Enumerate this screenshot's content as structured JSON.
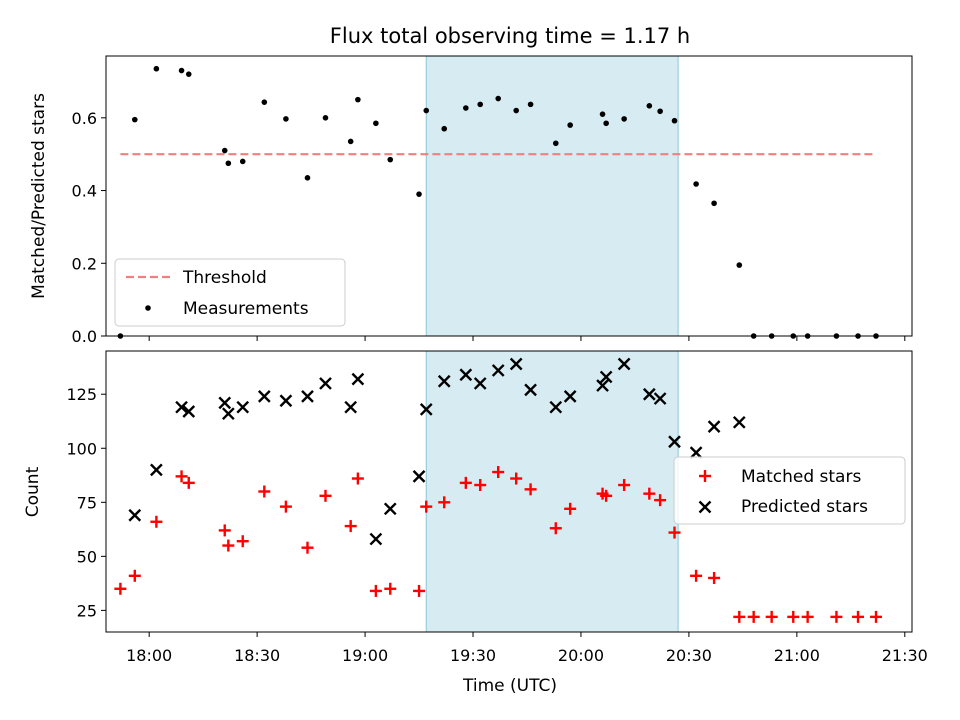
{
  "chart_data": {
    "title": "Flux total observing time = 1.17 h",
    "type": "scatter",
    "x_label": "Time (UTC)",
    "x_ticks": [
      "18:00",
      "18:30",
      "19:00",
      "19:30",
      "20:00",
      "20:30",
      "21:00",
      "21:30"
    ],
    "x_range": [
      "17:48",
      "21:32"
    ],
    "highlight_span": {
      "start": "19:17",
      "end": "20:27",
      "color": "#add8e6"
    },
    "top_panel": {
      "y_label": "Matched/Predicted stars",
      "y_range": [
        0,
        0.77
      ],
      "y_ticks": [
        "0.0",
        "0.2",
        "0.4",
        "0.6"
      ],
      "legend": {
        "location": "lower left",
        "entries": [
          "Threshold",
          "Measurements"
        ]
      },
      "threshold": {
        "name": "Threshold",
        "value": 0.5,
        "x_start": "17:52",
        "x_end": "21:22",
        "color": "#f08080",
        "style": "dashed"
      },
      "measurements": {
        "name": "Measurements",
        "color": "#000000",
        "points": [
          [
            "17:52",
            0.0
          ],
          [
            "17:56",
            0.595
          ],
          [
            "18:02",
            0.735
          ],
          [
            "18:09",
            0.73
          ],
          [
            "18:11",
            0.72
          ],
          [
            "18:21",
            0.51
          ],
          [
            "18:22",
            0.475
          ],
          [
            "18:26",
            0.48
          ],
          [
            "18:32",
            0.643
          ],
          [
            "18:38",
            0.597
          ],
          [
            "18:44",
            0.435
          ],
          [
            "18:49",
            0.6
          ],
          [
            "18:56",
            0.535
          ],
          [
            "18:58",
            0.65
          ],
          [
            "19:03",
            0.585
          ],
          [
            "19:07",
            0.485
          ],
          [
            "19:15",
            0.39
          ],
          [
            "19:17",
            0.62
          ],
          [
            "19:22",
            0.57
          ],
          [
            "19:28",
            0.627
          ],
          [
            "19:32",
            0.637
          ],
          [
            "19:37",
            0.653
          ],
          [
            "19:42",
            0.62
          ],
          [
            "19:46",
            0.637
          ],
          [
            "19:53",
            0.53
          ],
          [
            "19:57",
            0.58
          ],
          [
            "20:06",
            0.61
          ],
          [
            "20:07",
            0.585
          ],
          [
            "20:12",
            0.597
          ],
          [
            "20:19",
            0.633
          ],
          [
            "20:22",
            0.618
          ],
          [
            "20:26",
            0.592
          ],
          [
            "20:32",
            0.418
          ],
          [
            "20:37",
            0.365
          ],
          [
            "20:44",
            0.195
          ],
          [
            "20:48",
            0.0
          ],
          [
            "20:53",
            0.0
          ],
          [
            "20:59",
            0.0
          ],
          [
            "21:03",
            0.0
          ],
          [
            "21:11",
            0.0
          ],
          [
            "21:17",
            0.0
          ],
          [
            "21:22",
            0.0
          ]
        ]
      }
    },
    "bottom_panel": {
      "y_label": "Count",
      "y_range": [
        15,
        145
      ],
      "y_ticks": [
        "25",
        "50",
        "75",
        "100",
        "125"
      ],
      "legend": {
        "location": "center right",
        "entries": [
          "Matched stars",
          "Predicted stars"
        ]
      },
      "series": [
        {
          "name": "Matched stars",
          "marker": "plus",
          "color": "#ff0000",
          "points": [
            [
              "17:52",
              35
            ],
            [
              "17:56",
              41
            ],
            [
              "18:02",
              66
            ],
            [
              "18:09",
              87
            ],
            [
              "18:11",
              84
            ],
            [
              "18:21",
              62
            ],
            [
              "18:22",
              55
            ],
            [
              "18:26",
              57
            ],
            [
              "18:32",
              80
            ],
            [
              "18:38",
              73
            ],
            [
              "18:44",
              54
            ],
            [
              "18:49",
              78
            ],
            [
              "18:56",
              64
            ],
            [
              "18:58",
              86
            ],
            [
              "19:03",
              34
            ],
            [
              "19:07",
              35
            ],
            [
              "19:15",
              34
            ],
            [
              "19:17",
              73
            ],
            [
              "19:22",
              75
            ],
            [
              "19:28",
              84
            ],
            [
              "19:32",
              83
            ],
            [
              "19:37",
              89
            ],
            [
              "19:42",
              86
            ],
            [
              "19:46",
              81
            ],
            [
              "19:53",
              63
            ],
            [
              "19:57",
              72
            ],
            [
              "20:06",
              79
            ],
            [
              "20:07",
              78
            ],
            [
              "20:12",
              83
            ],
            [
              "20:19",
              79
            ],
            [
              "20:22",
              76
            ],
            [
              "20:26",
              61
            ],
            [
              "20:32",
              41
            ],
            [
              "20:37",
              40
            ],
            [
              "20:44",
              22
            ],
            [
              "20:48",
              22
            ],
            [
              "20:53",
              22
            ],
            [
              "20:59",
              22
            ],
            [
              "21:03",
              22
            ],
            [
              "21:11",
              22
            ],
            [
              "21:17",
              22
            ],
            [
              "21:22",
              22
            ]
          ]
        },
        {
          "name": "Predicted stars",
          "marker": "x",
          "color": "#000000",
          "points": [
            [
              "17:56",
              69
            ],
            [
              "18:02",
              90
            ],
            [
              "18:09",
              119
            ],
            [
              "18:11",
              117
            ],
            [
              "18:21",
              121
            ],
            [
              "18:22",
              116
            ],
            [
              "18:26",
              119
            ],
            [
              "18:32",
              124
            ],
            [
              "18:38",
              122
            ],
            [
              "18:44",
              124
            ],
            [
              "18:49",
              130
            ],
            [
              "18:56",
              119
            ],
            [
              "18:58",
              132
            ],
            [
              "19:03",
              58
            ],
            [
              "19:07",
              72
            ],
            [
              "19:15",
              87
            ],
            [
              "19:17",
              118
            ],
            [
              "19:22",
              131
            ],
            [
              "19:28",
              134
            ],
            [
              "19:32",
              130
            ],
            [
              "19:37",
              136
            ],
            [
              "19:42",
              139
            ],
            [
              "19:46",
              127
            ],
            [
              "19:53",
              119
            ],
            [
              "19:57",
              124
            ],
            [
              "20:06",
              129
            ],
            [
              "20:07",
              133
            ],
            [
              "20:12",
              139
            ],
            [
              "20:19",
              125
            ],
            [
              "20:22",
              123
            ],
            [
              "20:26",
              103
            ],
            [
              "20:32",
              98
            ],
            [
              "20:37",
              110
            ],
            [
              "20:44",
              112
            ]
          ]
        }
      ]
    }
  }
}
